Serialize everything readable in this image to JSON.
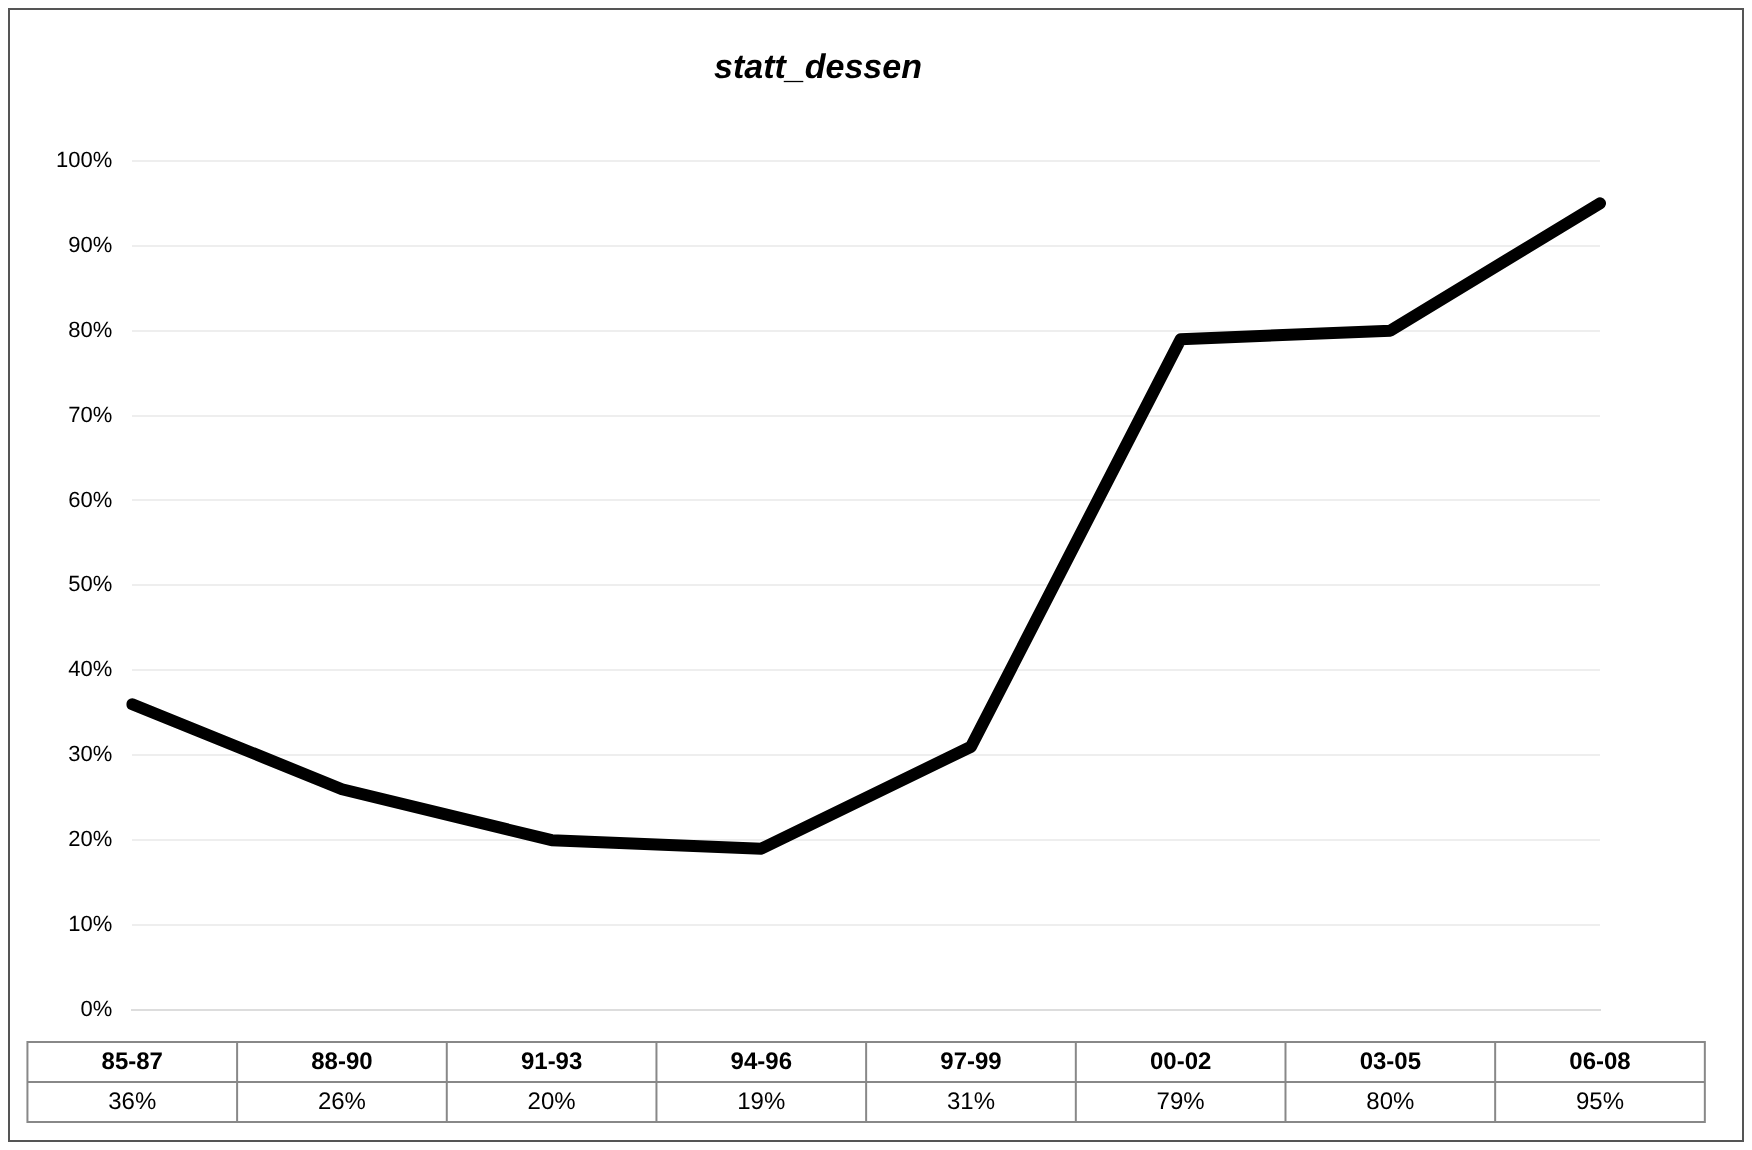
{
  "chart_data": {
    "type": "line",
    "title": "statt_dessen",
    "categories": [
      "85-87",
      "88-90",
      "91-93",
      "94-96",
      "97-99",
      "00-02",
      "03-05",
      "06-08"
    ],
    "series": [
      {
        "color": "#000000",
        "values": [
          36,
          26,
          20,
          19,
          31,
          79,
          80,
          95
        ]
      }
    ],
    "ylim": [
      0,
      100
    ],
    "yticks": [
      {
        "value": 0,
        "label": "0%"
      },
      {
        "value": 10,
        "label": "10%"
      },
      {
        "value": 20,
        "label": "20%"
      },
      {
        "value": 30,
        "label": "30%"
      },
      {
        "value": 40,
        "label": "40%"
      },
      {
        "value": 50,
        "label": "50%"
      },
      {
        "value": 60,
        "label": "60%"
      },
      {
        "value": 70,
        "label": "70%"
      },
      {
        "value": 80,
        "label": "80%"
      },
      {
        "value": 90,
        "label": "90%"
      },
      {
        "value": 100,
        "label": "100%"
      }
    ],
    "value_labels": [
      "36%",
      "26%",
      "20%",
      "19%",
      "31%",
      "79%",
      "80%",
      "95%"
    ],
    "grid": "y",
    "legend": false,
    "marker": "none",
    "line_style": "solid"
  }
}
